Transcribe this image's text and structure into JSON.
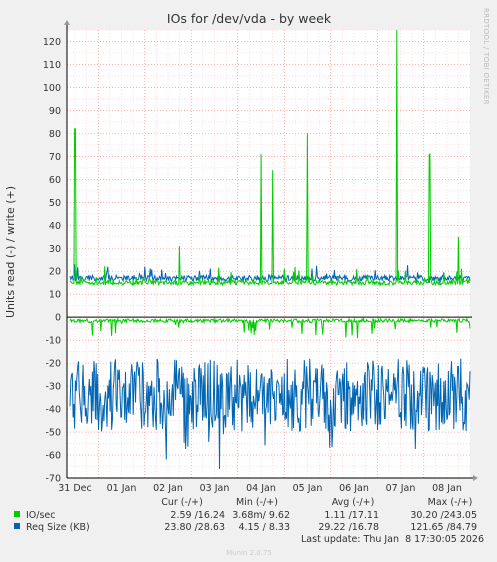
{
  "chart_data": {
    "type": "line",
    "title": "IOs for /dev/vda - by week",
    "ylabel": "Units read (-) / write (+)",
    "side_label": "RRDTOOL / TOBI OETIKER",
    "ylim": [
      -70,
      125
    ],
    "y_ticks": [
      -70,
      -60,
      -50,
      -40,
      -30,
      -20,
      -10,
      0,
      10,
      20,
      30,
      40,
      50,
      60,
      70,
      80,
      90,
      100,
      110,
      120
    ],
    "x_ticks": [
      "31 Dec",
      "01 Jan",
      "02 Jan",
      "03 Jan",
      "04 Jan",
      "05 Jan",
      "06 Jan",
      "07 Jan",
      "08 Jan"
    ],
    "grid": true,
    "colors": {
      "io_sec": "#00cc00",
      "req_size": "#0066b3",
      "background": "#f0f0f0",
      "plot_background": "#ffffff",
      "major_grid": "#ff7f7f",
      "minor_grid": "#ffc8c8"
    },
    "series": [
      {
        "name": "IO/sec",
        "color": "#00cc00",
        "write_baseline": 15,
        "read_baseline": -1.5,
        "write_peaks": [
          {
            "x": "31 Dec 00:00",
            "y": 82
          },
          {
            "x": "02 Jan 06:00",
            "y": 31
          },
          {
            "x": "04 Jan 00:00",
            "y": 71
          },
          {
            "x": "04 Jan 06:00",
            "y": 64
          },
          {
            "x": "05 Jan 00:00",
            "y": 80
          },
          {
            "x": "06 Jan 22:00",
            "y": 125
          },
          {
            "x": "07 Jan 15:00",
            "y": 71
          },
          {
            "x": "08 Jan 06:00",
            "y": 35
          }
        ]
      },
      {
        "name": "Req Size (KB)",
        "color": "#0066b3",
        "write_baseline": 17,
        "read_range": [
          -69,
          -14
        ]
      }
    ],
    "legend": {
      "headers": [
        "Cur (-/+)",
        "Min (-/+)",
        "Avg (-/+)",
        "Max (-/+)"
      ],
      "rows": [
        {
          "name": "IO/sec",
          "color": "#00cc00",
          "cur": "2.59 /16.24",
          "min": "3.68m/ 9.62",
          "avg": "1.11 /17.11",
          "max": "30.20 /243.05"
        },
        {
          "name": "Req Size (KB)",
          "color": "#0066b3",
          "cur": "23.80 /28.63",
          "min": "4.15 / 8.33",
          "avg": "29.22 /16.78",
          "max": "121.65 /84.79"
        }
      ]
    },
    "last_update": "Last update: Thu Jan  8 17:30:05 2026",
    "footer": "Munin 2.0.75"
  }
}
